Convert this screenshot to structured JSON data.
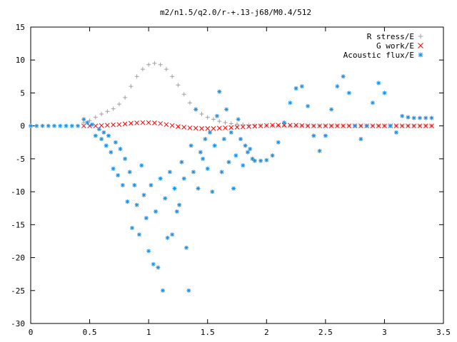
{
  "chart_data": {
    "type": "scatter",
    "title": "m2/n1.5/q2.0/r-+.13-j68/M0.4/512",
    "xlim": [
      0,
      3.5
    ],
    "ylim": [
      -30,
      15
    ],
    "x_ticks": [
      0,
      0.5,
      1,
      1.5,
      2,
      2.5,
      3,
      3.5
    ],
    "x_tick_labels": [
      "0",
      "0.5",
      "1",
      "1.5",
      "2",
      "2.5",
      "3",
      "3.5"
    ],
    "y_ticks": [
      -30,
      -25,
      -20,
      -15,
      -10,
      -5,
      0,
      5,
      10,
      15
    ],
    "y_tick_labels": [
      "-30",
      "-25",
      "-20",
      "-15",
      "-10",
      "-5",
      "0",
      "5",
      "10",
      "15"
    ],
    "grid": false,
    "legend_position": "top-right",
    "series": [
      {
        "name": "R stress/E",
        "marker": "plus",
        "color": "#a0a0a0",
        "x": [
          0.45,
          0.5,
          0.55,
          0.6,
          0.65,
          0.7,
          0.75,
          0.8,
          0.85,
          0.9,
          0.95,
          1.0,
          1.05,
          1.1,
          1.15,
          1.2,
          1.25,
          1.3,
          1.35,
          1.4,
          1.45,
          1.5,
          1.55,
          1.6,
          1.65,
          1.7,
          1.75,
          1.8,
          1.85,
          1.9,
          1.95,
          2.0,
          2.05,
          2.1,
          2.15,
          2.2,
          2.25,
          2.3,
          2.35,
          2.4,
          2.45,
          2.5,
          2.55,
          2.6,
          2.65,
          2.7,
          2.75,
          2.8,
          2.85,
          2.9,
          2.95,
          3.0,
          3.05,
          3.1,
          3.15,
          3.2,
          3.25,
          3.3,
          3.35,
          3.4
        ],
        "y": [
          0.5,
          0.8,
          1.3,
          1.8,
          2.2,
          2.6,
          3.3,
          4.3,
          6.0,
          7.5,
          8.6,
          9.3,
          9.5,
          9.3,
          8.6,
          7.5,
          6.2,
          4.8,
          3.5,
          2.5,
          1.8,
          1.3,
          1.0,
          0.7,
          0.5,
          0.35,
          0.25,
          0.18,
          0.12,
          0.08,
          0.05,
          0.03,
          0.02,
          0.01,
          0.0,
          0.0,
          0.0,
          0.0,
          0.0,
          0.0,
          0.0,
          0.0,
          0.0,
          0.0,
          0.0,
          0.0,
          0.0,
          0.0,
          0.0,
          0.0,
          0.0,
          0.0,
          0.0,
          0.0,
          0.0,
          0.0,
          0.0,
          0.0,
          0.0,
          0.0
        ]
      },
      {
        "name": "G work/E",
        "marker": "cross",
        "color": "#ff0000",
        "x": [
          0.45,
          0.5,
          0.55,
          0.6,
          0.65,
          0.7,
          0.75,
          0.8,
          0.85,
          0.9,
          0.95,
          1.0,
          1.05,
          1.1,
          1.15,
          1.2,
          1.25,
          1.3,
          1.35,
          1.4,
          1.45,
          1.5,
          1.55,
          1.6,
          1.65,
          1.7,
          1.75,
          1.8,
          1.85,
          1.9,
          1.95,
          2.0,
          2.05,
          2.1,
          2.15,
          2.2,
          2.25,
          2.3,
          2.35,
          2.4,
          2.45,
          2.5,
          2.55,
          2.6,
          2.65,
          2.7,
          2.75,
          2.8,
          2.85,
          2.9,
          2.95,
          3.0,
          3.05,
          3.1,
          3.15,
          3.2,
          3.25,
          3.3,
          3.35,
          3.4
        ],
        "y": [
          0.0,
          0.0,
          0.0,
          0.05,
          0.1,
          0.15,
          0.2,
          0.3,
          0.4,
          0.45,
          0.5,
          0.5,
          0.45,
          0.35,
          0.2,
          0.05,
          -0.1,
          -0.2,
          -0.3,
          -0.35,
          -0.4,
          -0.4,
          -0.4,
          -0.35,
          -0.3,
          -0.25,
          -0.2,
          -0.15,
          -0.1,
          -0.05,
          0.0,
          0.05,
          0.1,
          0.1,
          0.1,
          0.1,
          0.1,
          0.05,
          0.0,
          0.0,
          0.0,
          0.0,
          0.0,
          0.0,
          0.0,
          0.0,
          0.0,
          0.0,
          0.0,
          0.0,
          0.0,
          0.0,
          0.0,
          0.0,
          0.0,
          0.0,
          0.0,
          0.0,
          0.0,
          0.0
        ]
      },
      {
        "name": "Acoustic flux/E",
        "marker": "star",
        "color": "#1f8fdf",
        "x": [
          0.0,
          0.05,
          0.1,
          0.15,
          0.2,
          0.25,
          0.3,
          0.35,
          0.4,
          0.45,
          0.48,
          0.52,
          0.55,
          0.58,
          0.6,
          0.62,
          0.64,
          0.66,
          0.68,
          0.7,
          0.72,
          0.74,
          0.76,
          0.78,
          0.8,
          0.82,
          0.84,
          0.86,
          0.88,
          0.9,
          0.92,
          0.94,
          0.96,
          0.98,
          1.0,
          1.02,
          1.04,
          1.06,
          1.08,
          1.1,
          1.12,
          1.14,
          1.16,
          1.18,
          1.2,
          1.22,
          1.24,
          1.26,
          1.28,
          1.3,
          1.32,
          1.34,
          1.36,
          1.38,
          1.4,
          1.42,
          1.44,
          1.46,
          1.48,
          1.5,
          1.52,
          1.54,
          1.56,
          1.58,
          1.6,
          1.62,
          1.64,
          1.66,
          1.68,
          1.7,
          1.72,
          1.74,
          1.76,
          1.78,
          1.8,
          1.82,
          1.84,
          1.86,
          1.88,
          1.9,
          1.95,
          2.0,
          2.05,
          2.1,
          2.15,
          2.2,
          2.25,
          2.3,
          2.35,
          2.4,
          2.45,
          2.5,
          2.55,
          2.6,
          2.65,
          2.7,
          2.75,
          2.8,
          2.85,
          2.9,
          2.95,
          3.0,
          3.05,
          3.1,
          3.15,
          3.2,
          3.25,
          3.3,
          3.35,
          3.4
        ],
        "y": [
          0.0,
          0.0,
          0.0,
          0.0,
          0.0,
          0.0,
          0.0,
          0.0,
          0.0,
          1.0,
          0.5,
          0.2,
          -1.5,
          -0.5,
          -2.0,
          -1.0,
          -3.0,
          -1.5,
          -4.0,
          -6.5,
          -2.5,
          -7.5,
          -3.5,
          -9.0,
          -5.0,
          -11.5,
          -7.0,
          -15.5,
          -9.0,
          -12.0,
          -16.5,
          -6.0,
          -10.5,
          -14.0,
          -19.0,
          -9.0,
          -21.0,
          -13.0,
          -21.5,
          -8.0,
          -25.0,
          -11.0,
          -17.0,
          -7.0,
          -16.5,
          -9.5,
          -13.0,
          -12.0,
          -5.5,
          -8.0,
          -18.5,
          -25.0,
          -3.0,
          -7.0,
          2.5,
          -9.5,
          -4.0,
          -5.0,
          -2.0,
          -6.5,
          -1.0,
          -10.0,
          -3.0,
          1.5,
          5.2,
          -7.0,
          -2.0,
          2.5,
          -5.5,
          -1.0,
          -9.5,
          -4.5,
          1.0,
          -2.0,
          -6.0,
          -3.0,
          -4.0,
          -3.5,
          -5.0,
          -5.3,
          -5.3,
          -5.2,
          -4.5,
          -2.5,
          0.5,
          3.5,
          5.7,
          6.0,
          3.0,
          -1.5,
          -3.8,
          -1.5,
          2.5,
          6.0,
          7.5,
          5.0,
          0.0,
          -2.0,
          0.0,
          3.5,
          6.5,
          5.0,
          0.0,
          -1.0,
          1.5,
          1.3,
          1.2,
          1.2,
          1.2,
          1.2
        ]
      }
    ]
  }
}
